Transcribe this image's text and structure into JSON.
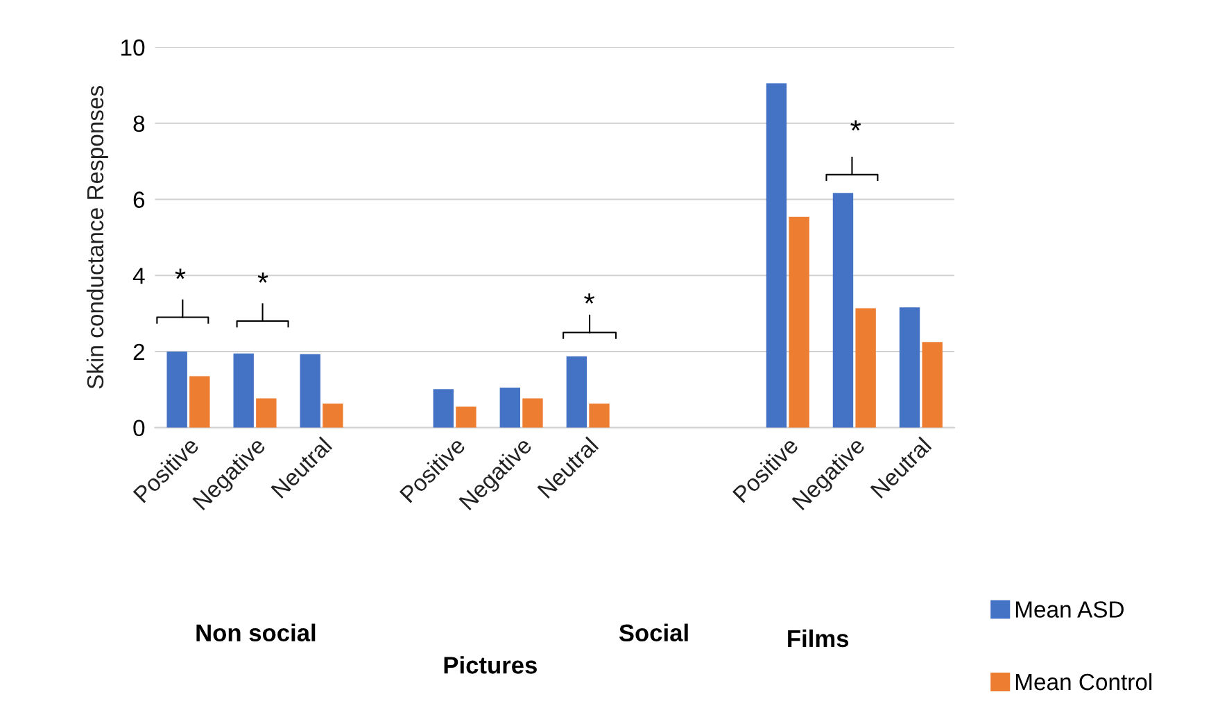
{
  "chart_data": {
    "type": "bar",
    "ylabel": "Skin conductance Responses",
    "categories": [
      "Positive",
      "Negative",
      "Neutral",
      null,
      "Positive",
      "Negative",
      "Neutral",
      null,
      null,
      "Positive",
      "Negative",
      "Neutral"
    ],
    "series": [
      {
        "name": "Mean ASD",
        "color": "#4472c4",
        "values": [
          2.0,
          1.95,
          1.93,
          null,
          1.01,
          1.05,
          1.87,
          null,
          null,
          9.05,
          6.17,
          3.16
        ]
      },
      {
        "name": "Mean Control",
        "color": "#ed7d31",
        "values": [
          1.35,
          0.77,
          0.63,
          null,
          0.55,
          0.77,
          0.63,
          null,
          null,
          5.54,
          3.14,
          2.25
        ]
      }
    ],
    "ylim": [
      0,
      10
    ],
    "yticks": [
      0,
      2,
      4,
      6,
      8,
      10
    ],
    "grid": "y",
    "legend": "bottom right",
    "annotations": [
      "*",
      "*",
      "*",
      "*",
      "Non social",
      "Social",
      "Pictures",
      "Films"
    ]
  }
}
